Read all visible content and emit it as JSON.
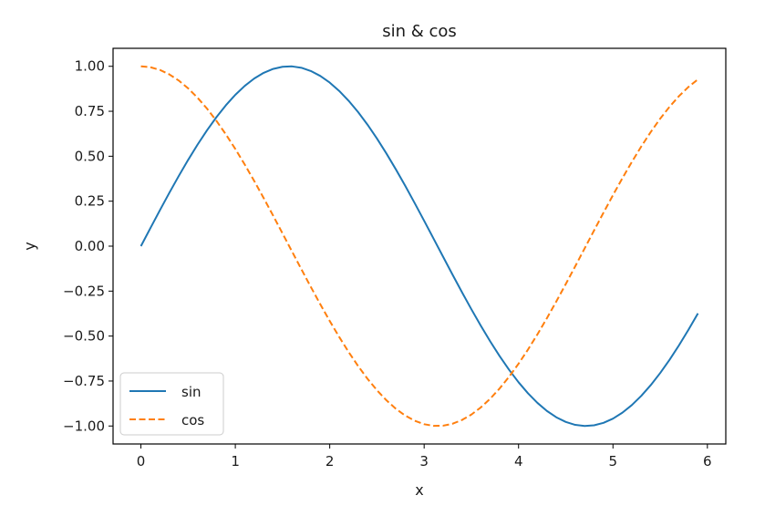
{
  "chart_data": {
    "type": "line",
    "title": "sin & cos",
    "xlabel": "x",
    "ylabel": "y",
    "xlim": [
      -0.295,
      6.195
    ],
    "ylim": [
      -1.1,
      1.1
    ],
    "x_ticks": [
      0,
      1,
      2,
      3,
      4,
      5,
      6
    ],
    "x_tick_labels": [
      "0",
      "1",
      "2",
      "3",
      "4",
      "5",
      "6"
    ],
    "y_ticks": [
      1.0,
      0.75,
      0.5,
      0.25,
      0.0,
      -0.25,
      -0.5,
      -0.75,
      -1.0
    ],
    "y_tick_labels": [
      "1.00",
      "0.75",
      "0.50",
      "0.25",
      "0.00",
      "−0.25",
      "−0.50",
      "−0.75",
      "−1.00"
    ],
    "grid": false,
    "legend_position": "lower-left",
    "x": [
      0.0,
      0.1,
      0.2,
      0.3,
      0.4,
      0.5,
      0.6,
      0.7,
      0.8,
      0.9,
      1.0,
      1.1,
      1.2,
      1.3,
      1.4,
      1.5,
      1.6,
      1.7,
      1.8,
      1.9,
      2.0,
      2.1,
      2.2,
      2.3,
      2.4,
      2.5,
      2.6,
      2.7,
      2.8,
      2.9,
      3.0,
      3.1,
      3.2,
      3.3,
      3.4,
      3.5,
      3.6,
      3.7,
      3.8,
      3.9,
      4.0,
      4.1,
      4.2,
      4.3,
      4.4,
      4.5,
      4.6,
      4.7,
      4.8,
      4.9,
      5.0,
      5.1,
      5.2,
      5.3,
      5.4,
      5.5,
      5.6,
      5.7,
      5.8,
      5.9
    ],
    "series": [
      {
        "name": "sin",
        "color": "#1f77b4",
        "linestyle": "solid",
        "values": [
          0.0,
          0.0998,
          0.1987,
          0.2955,
          0.3894,
          0.4794,
          0.5646,
          0.6442,
          0.7174,
          0.7833,
          0.8415,
          0.8912,
          0.932,
          0.9636,
          0.9854,
          0.9975,
          0.9996,
          0.9917,
          0.9738,
          0.9463,
          0.9093,
          0.8632,
          0.8085,
          0.7457,
          0.6755,
          0.5985,
          0.5155,
          0.4274,
          0.335,
          0.2392,
          0.1411,
          0.0416,
          -0.0584,
          -0.1577,
          -0.2555,
          -0.3508,
          -0.4425,
          -0.5298,
          -0.6119,
          -0.6878,
          -0.7568,
          -0.8183,
          -0.8716,
          -0.9162,
          -0.9516,
          -0.9775,
          -0.9937,
          -0.9999,
          -0.9962,
          -0.9825,
          -0.9589,
          -0.9258,
          -0.8835,
          -0.8323,
          -0.7728,
          -0.7055,
          -0.6313,
          -0.5507,
          -0.4646,
          -0.3739
        ]
      },
      {
        "name": "cos",
        "color": "#ff7f0e",
        "linestyle": "dashed",
        "values": [
          1.0,
          0.995,
          0.9801,
          0.9553,
          0.9211,
          0.8776,
          0.8253,
          0.7648,
          0.6967,
          0.6216,
          0.5403,
          0.4536,
          0.3624,
          0.2675,
          0.17,
          0.0707,
          -0.0292,
          -0.1288,
          -0.2272,
          -0.3233,
          -0.4161,
          -0.5048,
          -0.5885,
          -0.6663,
          -0.7374,
          -0.8011,
          -0.8569,
          -0.9041,
          -0.9422,
          -0.971,
          -0.99,
          -0.9991,
          -0.9983,
          -0.9875,
          -0.9668,
          -0.9365,
          -0.8968,
          -0.8481,
          -0.791,
          -0.7259,
          -0.6536,
          -0.5748,
          -0.4903,
          -0.4008,
          -0.3073,
          -0.2108,
          -0.1122,
          -0.0124,
          0.0875,
          0.1865,
          0.2837,
          0.378,
          0.4685,
          0.5544,
          0.6347,
          0.7087,
          0.7756,
          0.8347,
          0.8855,
          0.9275
        ]
      }
    ]
  }
}
